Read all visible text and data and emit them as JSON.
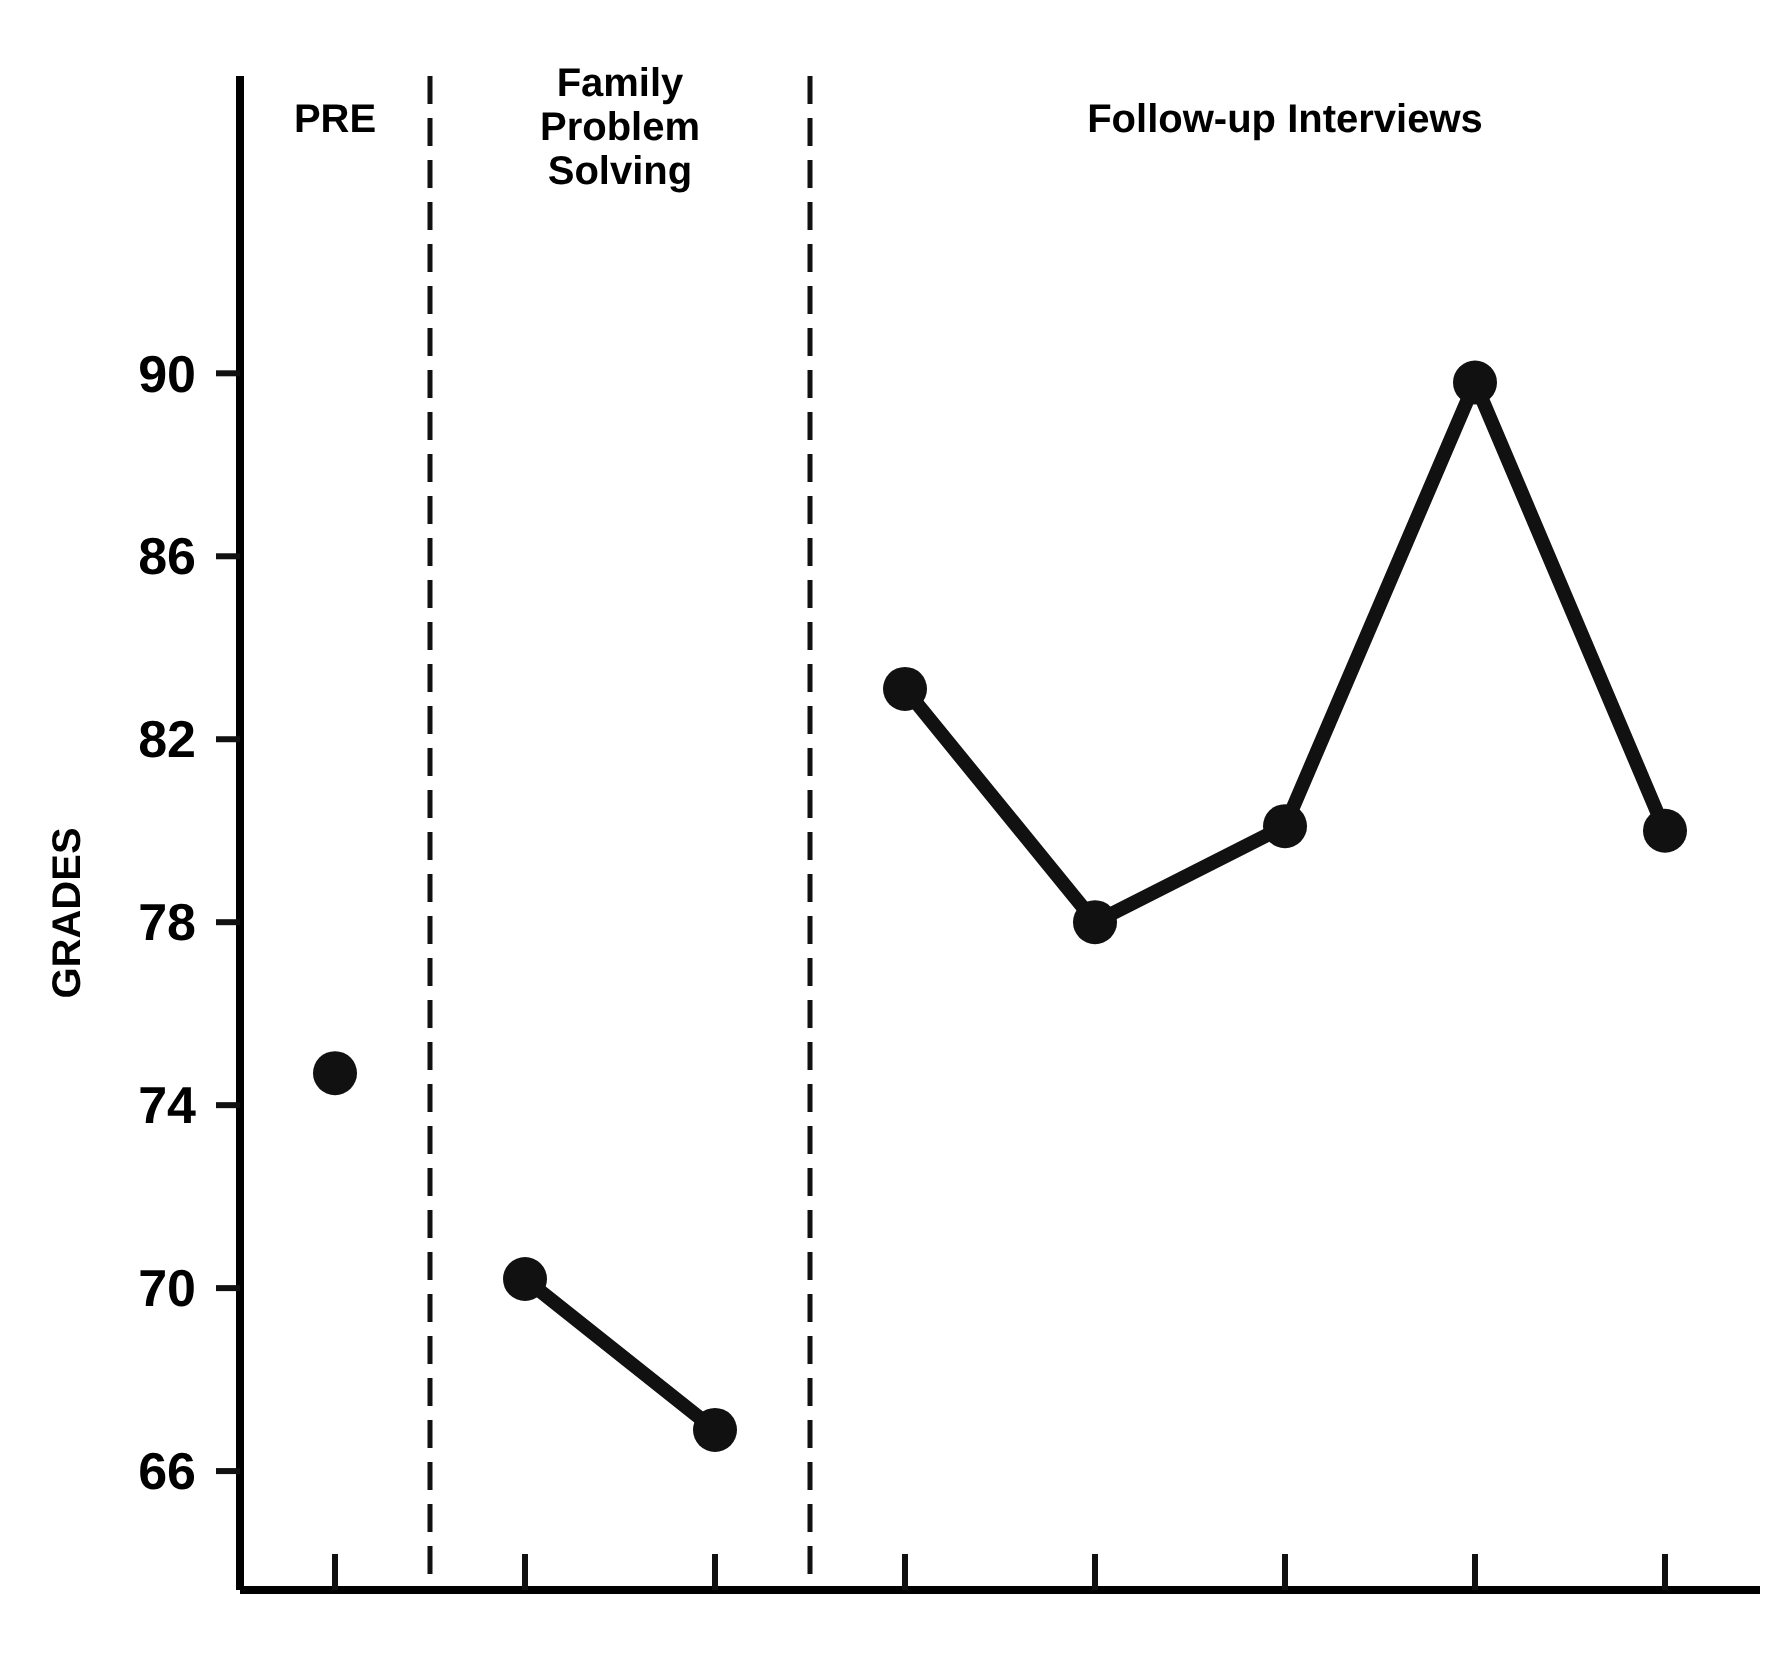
{
  "chart_data": {
    "type": "line",
    "ylabel": "GRADES",
    "categories": [
      null,
      null,
      null,
      null,
      null,
      null,
      null,
      null
    ],
    "ylim": [
      63.4,
      96.5
    ],
    "yticks": [
      66,
      70,
      74,
      78,
      82,
      86,
      90
    ],
    "tick_labels": "y",
    "series": [
      {
        "color": "#111111",
        "values": [
          74.7,
          null,
          null,
          null,
          null,
          null,
          null,
          null
        ]
      },
      {
        "color": "#111111",
        "values": [
          null,
          70.2,
          66.9,
          null,
          null,
          null,
          null,
          null
        ]
      },
      {
        "color": "#111111",
        "values": [
          null,
          null,
          null,
          83.1,
          78.0,
          80.1,
          89.8,
          80.0
        ]
      }
    ],
    "marker": "circle",
    "line_style": "solid",
    "grid": false,
    "annotations": [
      "PRE",
      "Family Problem Solving",
      "Follow-up Interviews"
    ]
  }
}
